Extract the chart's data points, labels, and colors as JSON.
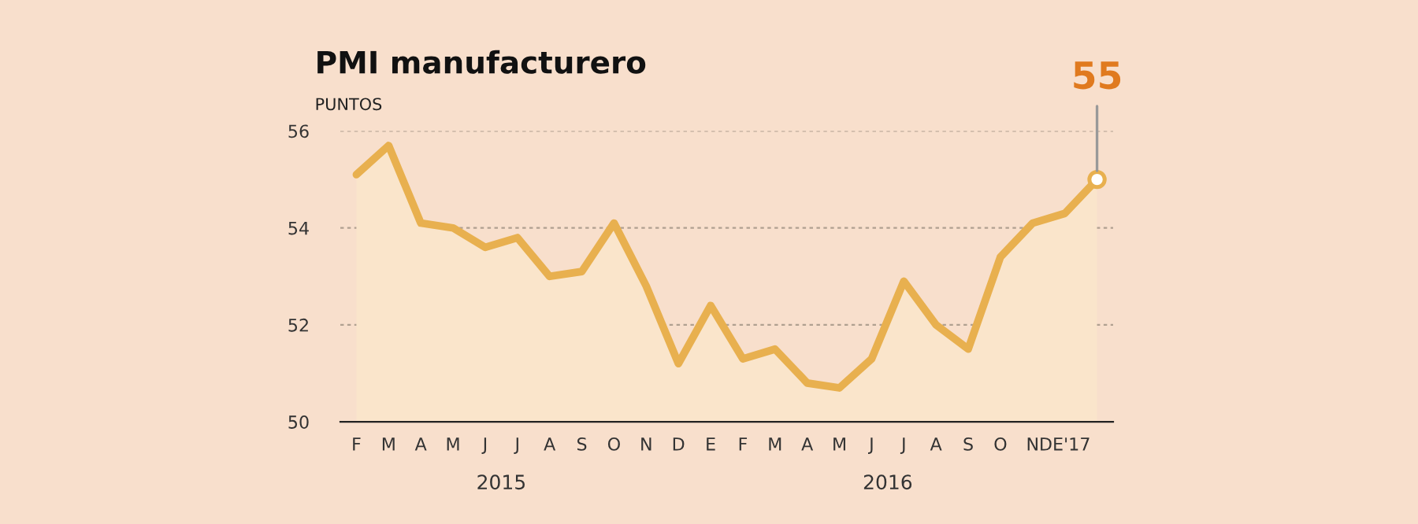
{
  "chart_data": {
    "type": "area",
    "title": "PMI manufacturero",
    "ylabel": "PUNTOS",
    "categories": [
      "F",
      "M",
      "A",
      "M",
      "J",
      "J",
      "A",
      "S",
      "O",
      "N",
      "D",
      "E",
      "F",
      "M",
      "A",
      "M",
      "J",
      "J",
      "A",
      "S",
      "O",
      "N",
      "DE'17",
      null
    ],
    "series": [
      {
        "color": "#e8b04f",
        "values": [
          55.1,
          55.7,
          54.1,
          54.0,
          53.6,
          53.8,
          53.0,
          53.1,
          54.1,
          52.8,
          51.2,
          52.4,
          51.3,
          51.5,
          50.8,
          50.7,
          51.3,
          52.9,
          52.0,
          51.5,
          53.4,
          54.1,
          54.3,
          55.0
        ]
      }
    ],
    "ylim": [
      50,
      56
    ],
    "yticks": [
      50,
      52,
      54,
      56
    ],
    "annotations": [
      "2015",
      "2016",
      {
        "text": "55",
        "y": 55.0
      }
    ],
    "grid": "y",
    "legend": false
  }
}
